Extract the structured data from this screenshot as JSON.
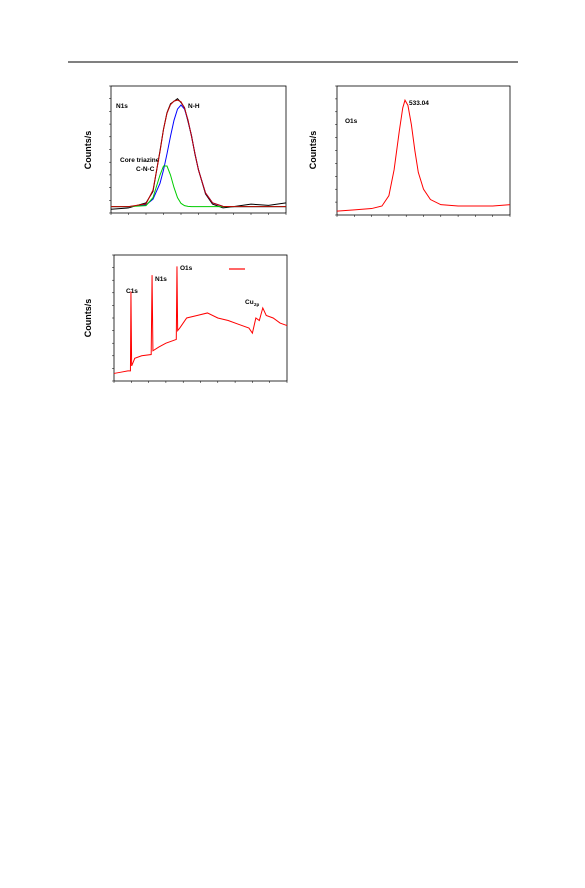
{
  "chart_data": [
    {
      "type": "line",
      "ylabel": "Counts/s",
      "xlim": [
        0,
        100
      ],
      "ylim": [
        0,
        100
      ],
      "annotations": [
        "N1s",
        "N-H",
        "Core triazine",
        "C-N-C"
      ],
      "x": [
        0,
        10,
        20,
        24,
        28,
        30,
        32,
        34,
        36,
        38,
        40,
        42,
        44,
        46,
        48,
        50,
        54,
        58,
        64,
        70,
        80,
        90,
        100
      ],
      "series": [
        {
          "color": "#000000",
          "values": [
            3,
            4,
            8,
            17,
            49,
            66,
            79,
            86,
            88,
            90,
            87,
            83,
            72,
            61,
            46,
            34,
            15,
            7,
            4,
            5,
            7,
            6,
            8
          ]
        },
        {
          "color": "#0000ff",
          "values": [
            5,
            5,
            6.4,
            10.9,
            23.4,
            33.8,
            46.6,
            60.4,
            73,
            81.8,
            85,
            81.8,
            73,
            60.4,
            46.6,
            33.8,
            15.8,
            8,
            5.2,
            5,
            5,
            5,
            5
          ]
        },
        {
          "color": "#00cc00",
          "values": [
            5,
            5,
            5.8,
            12.1,
            29.9,
            37,
            37,
            29.9,
            20.1,
            12.1,
            7.6,
            5.8,
            5.2,
            5,
            5,
            5,
            5,
            5,
            5,
            5,
            5,
            5,
            5
          ]
        },
        {
          "color": "#c00000",
          "values": [
            5,
            5,
            7.2,
            18,
            48.3,
            65.8,
            78.6,
            85.3,
            88.1,
            88.9,
            87.6,
            82.6,
            73.2,
            60.4,
            46.6,
            33.8,
            15.8,
            8,
            5.2,
            5,
            5,
            5,
            5
          ]
        }
      ]
    },
    {
      "type": "line",
      "ylabel": "Counts/s",
      "xlim": [
        0,
        100
      ],
      "ylim": [
        0,
        100
      ],
      "annotations": [
        "O1s",
        "533.04"
      ],
      "x": [
        0,
        10,
        20,
        26,
        30,
        33,
        36,
        38,
        39.3,
        41,
        43,
        45,
        47,
        50,
        54,
        60,
        70,
        80,
        90,
        100
      ],
      "series": [
        {
          "color": "#ff0000",
          "values": [
            3,
            4,
            5,
            7,
            15,
            35,
            65,
            83,
            89,
            85,
            70,
            50,
            33,
            20,
            12,
            8,
            7,
            7,
            7,
            8
          ]
        }
      ]
    },
    {
      "type": "line",
      "ylabel": "Counts/s",
      "xlim": [
        0,
        100
      ],
      "ylim": [
        0,
        100
      ],
      "annotations": [
        "C1s",
        "N1s",
        "O1s",
        "Cu",
        "2p"
      ],
      "x": [
        0,
        4,
        8,
        9.5,
        9.8,
        10.2,
        12,
        16,
        21.5,
        22,
        22.5,
        26,
        30,
        34,
        36,
        36.4,
        36.8,
        38,
        42,
        48,
        54,
        60,
        66,
        72,
        78,
        80,
        82,
        84,
        86,
        88,
        92,
        96,
        100
      ],
      "series": [
        {
          "color": "#ff0000",
          "values": [
            6,
            7,
            8,
            8,
            71,
            12,
            18,
            20,
            21,
            84,
            24,
            27,
            30,
            32,
            33,
            91,
            40,
            42,
            50,
            52,
            54,
            50,
            48,
            45,
            42,
            38,
            50,
            48,
            58,
            52,
            50,
            46,
            44
          ]
        }
      ]
    }
  ]
}
